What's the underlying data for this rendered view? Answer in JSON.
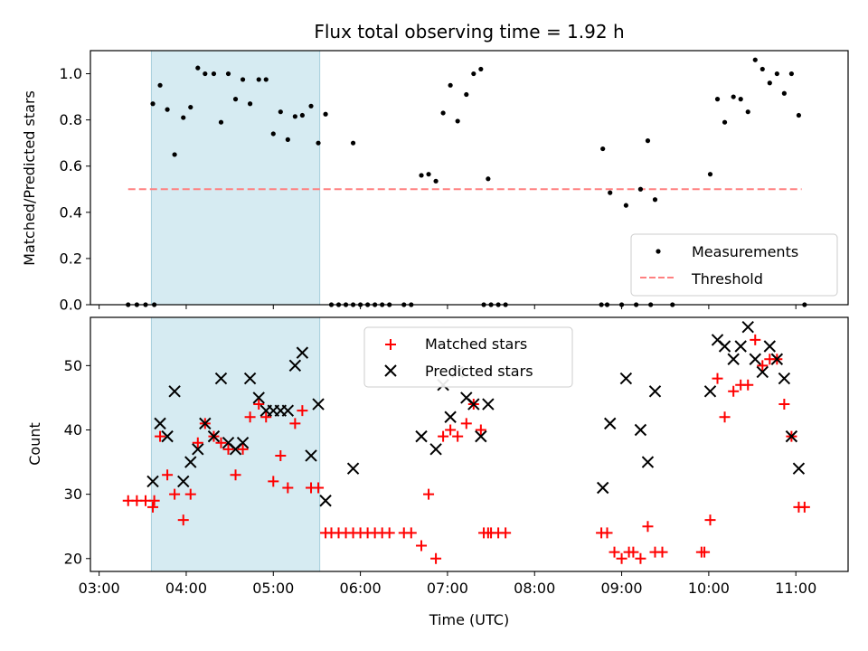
{
  "chart_data": [
    {
      "type": "scatter",
      "title": "Flux total observing time = 1.92 h",
      "ylabel": "Matched/Predicted stars",
      "xlabel": "",
      "xlim": [
        "02:54",
        "11:36"
      ],
      "ylim": [
        0,
        1.1
      ],
      "yticks": [
        "0.0",
        "0.2",
        "0.4",
        "0.6",
        "0.8",
        "1.0"
      ],
      "shaded_span": [
        "03:36",
        "05:32"
      ],
      "legend_position": "lower-right",
      "series": [
        {
          "name": "Measurements",
          "marker": "dot",
          "color": "#000000",
          "points": [
            [
              "03:20",
              0
            ],
            [
              "03:26",
              0
            ],
            [
              "03:32",
              0
            ],
            [
              "03:38",
              0
            ],
            [
              "03:37",
              0.87
            ],
            [
              "03:42",
              0.95
            ],
            [
              "03:47",
              0.845
            ],
            [
              "03:52",
              0.65
            ],
            [
              "03:58",
              0.81
            ],
            [
              "04:03",
              0.855
            ],
            [
              "04:08",
              1.025
            ],
            [
              "04:13",
              1.0
            ],
            [
              "04:19",
              1.0
            ],
            [
              "04:24",
              0.79
            ],
            [
              "04:29",
              1.0
            ],
            [
              "04:34",
              0.89
            ],
            [
              "04:39",
              0.975
            ],
            [
              "04:44",
              0.87
            ],
            [
              "04:50",
              0.975
            ],
            [
              "04:55",
              0.975
            ],
            [
              "05:00",
              0.74
            ],
            [
              "05:05",
              0.835
            ],
            [
              "05:10",
              0.715
            ],
            [
              "05:15",
              0.815
            ],
            [
              "05:20",
              0.82
            ],
            [
              "05:26",
              0.86
            ],
            [
              "05:31",
              0.7
            ],
            [
              "05:36",
              0.825
            ],
            [
              "05:40",
              0
            ],
            [
              "05:45",
              0
            ],
            [
              "05:50",
              0
            ],
            [
              "05:55",
              0
            ],
            [
              "06:00",
              0
            ],
            [
              "06:05",
              0
            ],
            [
              "06:10",
              0
            ],
            [
              "06:15",
              0
            ],
            [
              "06:20",
              0
            ],
            [
              "06:30",
              0
            ],
            [
              "06:35",
              0
            ],
            [
              "05:55",
              0.7
            ],
            [
              "06:42",
              0.56
            ],
            [
              "06:47",
              0.565
            ],
            [
              "06:52",
              0.535
            ],
            [
              "06:57",
              0.83
            ],
            [
              "07:02",
              0.95
            ],
            [
              "07:07",
              0.795
            ],
            [
              "07:13",
              0.91
            ],
            [
              "07:18",
              1.0
            ],
            [
              "07:23",
              1.02
            ],
            [
              "07:28",
              0.545
            ],
            [
              "07:25",
              0
            ],
            [
              "07:30",
              0
            ],
            [
              "07:35",
              0
            ],
            [
              "07:40",
              0
            ],
            [
              "08:46",
              0
            ],
            [
              "08:50",
              0
            ],
            [
              "09:00",
              0
            ],
            [
              "09:10",
              0
            ],
            [
              "09:20",
              0
            ],
            [
              "09:35",
              0
            ],
            [
              "08:47",
              0.675
            ],
            [
              "08:52",
              0.485
            ],
            [
              "09:03",
              0.43
            ],
            [
              "09:13",
              0.5
            ],
            [
              "09:18",
              0.71
            ],
            [
              "09:23",
              0.455
            ],
            [
              "10:01",
              0.565
            ],
            [
              "10:06",
              0.89
            ],
            [
              "10:11",
              0.79
            ],
            [
              "10:17",
              0.9
            ],
            [
              "10:22",
              0.89
            ],
            [
              "10:27",
              0.835
            ],
            [
              "10:32",
              1.06
            ],
            [
              "10:37",
              1.02
            ],
            [
              "10:42",
              0.96
            ],
            [
              "10:47",
              1.0
            ],
            [
              "10:52",
              0.915
            ],
            [
              "10:57",
              1.0
            ],
            [
              "11:02",
              0.82
            ],
            [
              "11:06",
              0
            ]
          ]
        },
        {
          "name": "Threshold",
          "type": "line",
          "style": "dashed",
          "color": "#ff8080",
          "x": [
            "03:20",
            "11:04"
          ],
          "values": [
            0.5,
            0.5
          ]
        }
      ]
    },
    {
      "type": "scatter",
      "title": "",
      "ylabel": "Count",
      "xlabel": "Time (UTC)",
      "xlim": [
        "02:54",
        "11:36"
      ],
      "ylim": [
        18,
        57.5
      ],
      "yticks": [
        "20",
        "30",
        "40",
        "50"
      ],
      "xticks": [
        "03:00",
        "04:00",
        "05:00",
        "06:00",
        "07:00",
        "08:00",
        "09:00",
        "10:00",
        "11:00"
      ],
      "shaded_span": [
        "03:36",
        "05:32"
      ],
      "legend_position": "upper-center",
      "series": [
        {
          "name": "Matched stars",
          "marker": "plus",
          "color": "#ff0000",
          "points": [
            [
              "03:20",
              29
            ],
            [
              "03:26",
              29
            ],
            [
              "03:32",
              29
            ],
            [
              "03:38",
              29
            ],
            [
              "03:37",
              28
            ],
            [
              "03:42",
              39
            ],
            [
              "03:47",
              33
            ],
            [
              "03:52",
              30
            ],
            [
              "03:58",
              26
            ],
            [
              "04:03",
              30
            ],
            [
              "04:08",
              38
            ],
            [
              "04:13",
              41
            ],
            [
              "04:19",
              39
            ],
            [
              "04:24",
              38
            ],
            [
              "04:29",
              37
            ],
            [
              "04:34",
              33
            ],
            [
              "04:39",
              37
            ],
            [
              "04:44",
              42
            ],
            [
              "04:50",
              44
            ],
            [
              "04:55",
              42
            ],
            [
              "05:00",
              32
            ],
            [
              "05:05",
              36
            ],
            [
              "05:10",
              31
            ],
            [
              "05:15",
              41
            ],
            [
              "05:20",
              43
            ],
            [
              "05:26",
              31
            ],
            [
              "05:31",
              31
            ],
            [
              "05:36",
              24
            ],
            [
              "05:40",
              24
            ],
            [
              "05:45",
              24
            ],
            [
              "05:50",
              24
            ],
            [
              "05:55",
              24
            ],
            [
              "06:00",
              24
            ],
            [
              "06:05",
              24
            ],
            [
              "06:10",
              24
            ],
            [
              "06:15",
              24
            ],
            [
              "06:20",
              24
            ],
            [
              "06:30",
              24
            ],
            [
              "06:35",
              24
            ],
            [
              "06:42",
              22
            ],
            [
              "06:47",
              30
            ],
            [
              "06:52",
              20
            ],
            [
              "06:57",
              39
            ],
            [
              "07:02",
              40
            ],
            [
              "07:07",
              39
            ],
            [
              "07:13",
              41
            ],
            [
              "07:18",
              44
            ],
            [
              "07:23",
              40
            ],
            [
              "07:28",
              24
            ],
            [
              "07:25",
              24
            ],
            [
              "07:30",
              24
            ],
            [
              "07:35",
              24
            ],
            [
              "07:40",
              24
            ],
            [
              "08:46",
              24
            ],
            [
              "08:50",
              24
            ],
            [
              "08:55",
              21
            ],
            [
              "09:00",
              20
            ],
            [
              "09:05",
              21
            ],
            [
              "09:08",
              21
            ],
            [
              "09:13",
              20
            ],
            [
              "09:18",
              25
            ],
            [
              "09:23",
              21
            ],
            [
              "09:28",
              21
            ],
            [
              "09:55",
              21
            ],
            [
              "09:57",
              21
            ],
            [
              "10:01",
              26
            ],
            [
              "10:06",
              48
            ],
            [
              "10:11",
              42
            ],
            [
              "10:17",
              46
            ],
            [
              "10:22",
              47
            ],
            [
              "10:27",
              47
            ],
            [
              "10:32",
              54
            ],
            [
              "10:37",
              50
            ],
            [
              "10:42",
              51
            ],
            [
              "10:47",
              51
            ],
            [
              "10:52",
              44
            ],
            [
              "10:57",
              39
            ],
            [
              "11:02",
              28
            ],
            [
              "11:06",
              28
            ]
          ]
        },
        {
          "name": "Predicted stars",
          "marker": "x",
          "color": "#000000",
          "points": [
            [
              "03:37",
              32
            ],
            [
              "03:42",
              41
            ],
            [
              "03:47",
              39
            ],
            [
              "03:52",
              46
            ],
            [
              "03:58",
              32
            ],
            [
              "04:03",
              35
            ],
            [
              "04:08",
              37
            ],
            [
              "04:13",
              41
            ],
            [
              "04:19",
              39
            ],
            [
              "04:24",
              48
            ],
            [
              "04:29",
              38
            ],
            [
              "04:34",
              37
            ],
            [
              "04:39",
              38
            ],
            [
              "04:44",
              48
            ],
            [
              "04:50",
              45
            ],
            [
              "04:55",
              43
            ],
            [
              "05:00",
              43
            ],
            [
              "05:05",
              43
            ],
            [
              "05:10",
              43
            ],
            [
              "05:15",
              50
            ],
            [
              "05:20",
              52
            ],
            [
              "05:26",
              36
            ],
            [
              "05:31",
              44
            ],
            [
              "05:36",
              29
            ],
            [
              "05:55",
              34
            ],
            [
              "06:42",
              39
            ],
            [
              "06:52",
              37
            ],
            [
              "06:57",
              47
            ],
            [
              "07:02",
              42
            ],
            [
              "07:07",
              49
            ],
            [
              "07:13",
              45
            ],
            [
              "07:18",
              44
            ],
            [
              "07:23",
              39
            ],
            [
              "07:28",
              44
            ],
            [
              "08:47",
              31
            ],
            [
              "08:52",
              41
            ],
            [
              "09:03",
              48
            ],
            [
              "09:13",
              40
            ],
            [
              "09:18",
              35
            ],
            [
              "09:23",
              46
            ],
            [
              "10:01",
              46
            ],
            [
              "10:06",
              54
            ],
            [
              "10:11",
              53
            ],
            [
              "10:17",
              51
            ],
            [
              "10:22",
              53
            ],
            [
              "10:27",
              56
            ],
            [
              "10:32",
              51
            ],
            [
              "10:37",
              49
            ],
            [
              "10:42",
              53
            ],
            [
              "10:47",
              51
            ],
            [
              "10:52",
              48
            ],
            [
              "10:57",
              39
            ],
            [
              "11:02",
              34
            ]
          ]
        }
      ]
    }
  ]
}
